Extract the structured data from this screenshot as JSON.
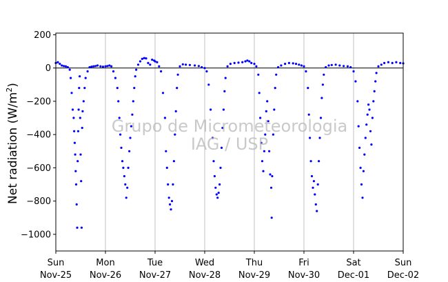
{
  "chart_data": {
    "type": "scatter",
    "ylabel": "Net radiation (W/m²)",
    "ylabel_main": "Net radiation (W/m",
    "ylabel_sup": "2",
    "ylabel_end": ")",
    "ylim": [
      -1100,
      210
    ],
    "yticks": [
      200,
      0,
      -200,
      -400,
      -600,
      -800,
      -1000
    ],
    "xlim": [
      0,
      7
    ],
    "x_unit": "days since Sun Nov-25 00:00",
    "x_ticks": [
      {
        "day": "Sun",
        "date": "Nov-25"
      },
      {
        "day": "Mon",
        "date": "Nov-26"
      },
      {
        "day": "Tue",
        "date": "Nov-27"
      },
      {
        "day": "Wed",
        "date": "Nov-28"
      },
      {
        "day": "Thu",
        "date": "Nov-29"
      },
      {
        "day": "Fri",
        "date": "Nov-30"
      },
      {
        "day": "Sat",
        "date": "Dec-01"
      },
      {
        "day": "Sun",
        "date": "Dec-02"
      }
    ],
    "grid": "vertical",
    "zero_line": true,
    "series": [
      {
        "color": "#0000ff",
        "marker": "dot",
        "points": [
          [
            0.0,
            30
          ],
          [
            0.04,
            35
          ],
          [
            0.08,
            25
          ],
          [
            0.12,
            15
          ],
          [
            0.16,
            12
          ],
          [
            0.2,
            10
          ],
          [
            0.24,
            5
          ],
          [
            0.28,
            -10
          ],
          [
            0.3,
            -60
          ],
          [
            0.32,
            -150
          ],
          [
            0.34,
            -250
          ],
          [
            0.36,
            -300
          ],
          [
            0.37,
            -380
          ],
          [
            0.38,
            -450
          ],
          [
            0.39,
            -520
          ],
          [
            0.4,
            -620
          ],
          [
            0.41,
            -700
          ],
          [
            0.42,
            -820
          ],
          [
            0.43,
            -960
          ],
          [
            0.44,
            -560
          ],
          [
            0.45,
            -380
          ],
          [
            0.46,
            -250
          ],
          [
            0.47,
            -120
          ],
          [
            0.48,
            -50
          ],
          [
            0.49,
            -300
          ],
          [
            0.5,
            -520
          ],
          [
            0.51,
            -680
          ],
          [
            0.52,
            -960
          ],
          [
            0.53,
            -360
          ],
          [
            0.54,
            -260
          ],
          [
            0.56,
            -200
          ],
          [
            0.58,
            -120
          ],
          [
            0.6,
            -60
          ],
          [
            0.64,
            -20
          ],
          [
            0.68,
            5
          ],
          [
            0.72,
            8
          ],
          [
            0.76,
            10
          ],
          [
            0.8,
            12
          ],
          [
            0.84,
            15
          ],
          [
            0.9,
            10
          ],
          [
            0.95,
            8
          ],
          [
            1.0,
            10
          ],
          [
            1.04,
            12
          ],
          [
            1.08,
            15
          ],
          [
            1.12,
            10
          ],
          [
            1.16,
            -20
          ],
          [
            1.2,
            -60
          ],
          [
            1.24,
            -120
          ],
          [
            1.26,
            -200
          ],
          [
            1.28,
            -300
          ],
          [
            1.3,
            -400
          ],
          [
            1.32,
            -480
          ],
          [
            1.34,
            -560
          ],
          [
            1.36,
            -600
          ],
          [
            1.38,
            -650
          ],
          [
            1.4,
            -700
          ],
          [
            1.42,
            -780
          ],
          [
            1.44,
            -720
          ],
          [
            1.46,
            -600
          ],
          [
            1.48,
            -500
          ],
          [
            1.5,
            -420
          ],
          [
            1.52,
            -350
          ],
          [
            1.54,
            -280
          ],
          [
            1.56,
            -200
          ],
          [
            1.58,
            -120
          ],
          [
            1.6,
            -50
          ],
          [
            1.62,
            -10
          ],
          [
            1.66,
            20
          ],
          [
            1.7,
            40
          ],
          [
            1.74,
            55
          ],
          [
            1.78,
            60
          ],
          [
            1.82,
            58
          ],
          [
            1.86,
            30
          ],
          [
            1.9,
            20
          ],
          [
            1.94,
            50
          ],
          [
            1.98,
            45
          ],
          [
            2.0,
            40
          ],
          [
            2.04,
            35
          ],
          [
            2.08,
            10
          ],
          [
            2.12,
            -20
          ],
          [
            2.16,
            -150
          ],
          [
            2.2,
            -300
          ],
          [
            2.22,
            -500
          ],
          [
            2.24,
            -600
          ],
          [
            2.26,
            -700
          ],
          [
            2.28,
            -780
          ],
          [
            2.3,
            -820
          ],
          [
            2.32,
            -850
          ],
          [
            2.34,
            -800
          ],
          [
            2.36,
            -700
          ],
          [
            2.38,
            -560
          ],
          [
            2.4,
            -400
          ],
          [
            2.42,
            -260
          ],
          [
            2.44,
            -120
          ],
          [
            2.46,
            -40
          ],
          [
            2.5,
            10
          ],
          [
            2.56,
            22
          ],
          [
            2.62,
            20
          ],
          [
            2.7,
            18
          ],
          [
            2.8,
            15
          ],
          [
            2.88,
            12
          ],
          [
            2.94,
            5
          ],
          [
            3.0,
            0
          ],
          [
            3.04,
            -20
          ],
          [
            3.08,
            -100
          ],
          [
            3.12,
            -250
          ],
          [
            3.16,
            -420
          ],
          [
            3.18,
            -560
          ],
          [
            3.2,
            -650
          ],
          [
            3.22,
            -720
          ],
          [
            3.24,
            -760
          ],
          [
            3.26,
            -780
          ],
          [
            3.28,
            -750
          ],
          [
            3.3,
            -700
          ],
          [
            3.32,
            -600
          ],
          [
            3.34,
            -480
          ],
          [
            3.36,
            -360
          ],
          [
            3.38,
            -250
          ],
          [
            3.4,
            -140
          ],
          [
            3.42,
            -60
          ],
          [
            3.46,
            10
          ],
          [
            3.52,
            25
          ],
          [
            3.6,
            30
          ],
          [
            3.68,
            32
          ],
          [
            3.76,
            35
          ],
          [
            3.82,
            40
          ],
          [
            3.86,
            45
          ],
          [
            3.9,
            40
          ],
          [
            3.94,
            30
          ],
          [
            4.0,
            25
          ],
          [
            4.04,
            10
          ],
          [
            4.08,
            -40
          ],
          [
            4.1,
            -150
          ],
          [
            4.12,
            -300
          ],
          [
            4.14,
            -450
          ],
          [
            4.16,
            -560
          ],
          [
            4.18,
            -620
          ],
          [
            4.2,
            -500
          ],
          [
            4.22,
            -400
          ],
          [
            4.24,
            -260
          ],
          [
            4.26,
            -200
          ],
          [
            4.28,
            -320
          ],
          [
            4.3,
            -500
          ],
          [
            4.32,
            -640
          ],
          [
            4.34,
            -720
          ],
          [
            4.35,
            -900
          ],
          [
            4.36,
            -650
          ],
          [
            4.38,
            -400
          ],
          [
            4.4,
            -250
          ],
          [
            4.42,
            -120
          ],
          [
            4.44,
            -40
          ],
          [
            4.48,
            5
          ],
          [
            4.54,
            15
          ],
          [
            4.62,
            25
          ],
          [
            4.7,
            30
          ],
          [
            4.78,
            28
          ],
          [
            4.84,
            25
          ],
          [
            4.9,
            20
          ],
          [
            4.95,
            15
          ],
          [
            5.0,
            10
          ],
          [
            5.04,
            -20
          ],
          [
            5.08,
            -120
          ],
          [
            5.1,
            -280
          ],
          [
            5.12,
            -420
          ],
          [
            5.14,
            -560
          ],
          [
            5.16,
            -650
          ],
          [
            5.18,
            -720
          ],
          [
            5.2,
            -680
          ],
          [
            5.22,
            -760
          ],
          [
            5.24,
            -820
          ],
          [
            5.26,
            -860
          ],
          [
            5.28,
            -700
          ],
          [
            5.3,
            -560
          ],
          [
            5.32,
            -420
          ],
          [
            5.34,
            -300
          ],
          [
            5.36,
            -180
          ],
          [
            5.38,
            -100
          ],
          [
            5.4,
            -40
          ],
          [
            5.44,
            5
          ],
          [
            5.5,
            15
          ],
          [
            5.56,
            18
          ],
          [
            5.64,
            20
          ],
          [
            5.72,
            15
          ],
          [
            5.8,
            12
          ],
          [
            5.88,
            10
          ],
          [
            5.94,
            5
          ],
          [
            6.0,
            -20
          ],
          [
            6.04,
            -80
          ],
          [
            6.08,
            -200
          ],
          [
            6.1,
            -350
          ],
          [
            6.12,
            -480
          ],
          [
            6.14,
            -600
          ],
          [
            6.16,
            -700
          ],
          [
            6.18,
            -780
          ],
          [
            6.2,
            -620
          ],
          [
            6.22,
            -520
          ],
          [
            6.24,
            -420
          ],
          [
            6.26,
            -340
          ],
          [
            6.28,
            -280
          ],
          [
            6.3,
            -220
          ],
          [
            6.32,
            -250
          ],
          [
            6.34,
            -380
          ],
          [
            6.36,
            -460
          ],
          [
            6.38,
            -300
          ],
          [
            6.4,
            -200
          ],
          [
            6.42,
            -140
          ],
          [
            6.44,
            -80
          ],
          [
            6.46,
            -30
          ],
          [
            6.5,
            10
          ],
          [
            6.56,
            20
          ],
          [
            6.62,
            30
          ],
          [
            6.7,
            35
          ],
          [
            6.78,
            30
          ],
          [
            6.86,
            35
          ],
          [
            6.94,
            30
          ],
          [
            7.0,
            28
          ]
        ]
      }
    ],
    "watermark": [
      "Grupo de Micrometeorologia",
      "IAG / USP"
    ]
  },
  "colors": {
    "points": "#0000ff",
    "axes": "#000000",
    "grid": "#b0b0b0",
    "watermark": "#b8b8b8"
  }
}
